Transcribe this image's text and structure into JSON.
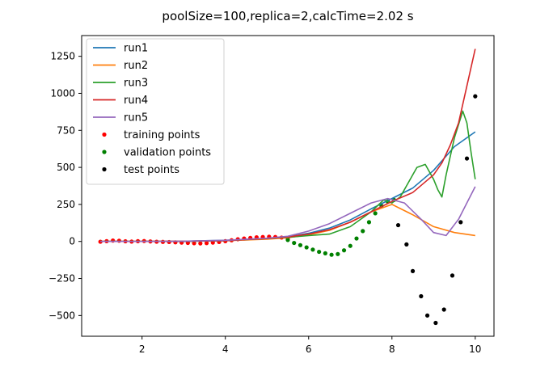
{
  "chart_data": {
    "type": "line",
    "title": "poolSize=100,replica=2,calcTime=2.02 s",
    "xlabel": "",
    "ylabel": "",
    "xlim": [
      0.55,
      10.45
    ],
    "ylim": [
      -640,
      1390
    ],
    "xticks": [
      2,
      4,
      6,
      8,
      10
    ],
    "yticks": [
      -500,
      -250,
      0,
      250,
      500,
      750,
      1000,
      1250
    ],
    "legend_position": "top-left",
    "series": [
      {
        "name": "run1",
        "type": "line",
        "color": "#1f77b4",
        "x": [
          1,
          2,
          3,
          4,
          5,
          5.5,
          6,
          6.5,
          7,
          7.5,
          8,
          8.5,
          9,
          9.5,
          10
        ],
        "y": [
          0,
          0,
          2,
          8,
          20,
          30,
          55,
          90,
          145,
          220,
          290,
          360,
          480,
          640,
          740
        ]
      },
      {
        "name": "run2",
        "type": "line",
        "color": "#ff7f0e",
        "x": [
          1,
          2,
          3,
          4,
          5,
          5.5,
          6,
          6.5,
          7,
          7.5,
          8,
          8.5,
          9,
          9.5,
          10
        ],
        "y": [
          0,
          0,
          2,
          5,
          15,
          25,
          45,
          75,
          130,
          200,
          250,
          180,
          100,
          60,
          40
        ]
      },
      {
        "name": "run3",
        "type": "line",
        "color": "#2ca02c",
        "x": [
          1,
          2,
          3,
          4,
          5,
          5.5,
          6,
          6.5,
          7,
          7.5,
          7.8,
          8,
          8.2,
          8.4,
          8.6,
          8.8,
          9,
          9.1,
          9.2,
          9.3,
          9.5,
          9.7,
          9.8,
          9.9,
          10
        ],
        "y": [
          0,
          0,
          0,
          5,
          20,
          28,
          40,
          50,
          100,
          200,
          280,
          260,
          300,
          400,
          500,
          520,
          420,
          350,
          300,
          450,
          700,
          880,
          800,
          600,
          420
        ]
      },
      {
        "name": "run4",
        "type": "line",
        "color": "#d62728",
        "x": [
          1,
          2,
          3,
          4,
          5,
          5.5,
          6,
          6.5,
          7,
          7.5,
          8,
          8.5,
          9,
          9.2,
          9.4,
          9.6,
          9.8,
          10
        ],
        "y": [
          0,
          0,
          2,
          5,
          20,
          30,
          50,
          80,
          130,
          200,
          270,
          330,
          450,
          530,
          650,
          800,
          1050,
          1300
        ]
      },
      {
        "name": "run5",
        "type": "line",
        "color": "#9467bd",
        "x": [
          1,
          2,
          3,
          4,
          5,
          5.5,
          6,
          6.5,
          7,
          7.5,
          7.9,
          8.3,
          8.7,
          9,
          9.3,
          9.6,
          10
        ],
        "y": [
          0,
          0,
          2,
          8,
          22,
          35,
          70,
          120,
          190,
          260,
          290,
          260,
          150,
          60,
          40,
          150,
          370
        ]
      },
      {
        "name": "training points",
        "type": "scatter",
        "color": "#ff0000",
        "x": [
          1,
          1.15,
          1.3,
          1.45,
          1.6,
          1.75,
          1.9,
          2.05,
          2.2,
          2.35,
          2.5,
          2.65,
          2.8,
          2.95,
          3.1,
          3.25,
          3.4,
          3.55,
          3.7,
          3.85,
          4,
          4.15,
          4.3,
          4.45,
          4.6,
          4.75,
          4.9,
          5.05,
          5.2,
          5.35,
          5.5
        ],
        "y": [
          -2,
          2,
          6,
          5,
          1,
          -1,
          2,
          3,
          0,
          -2,
          -3,
          -4,
          -6,
          -8,
          -10,
          -12,
          -13,
          -11,
          -8,
          -4,
          2,
          8,
          15,
          20,
          24,
          28,
          30,
          32,
          30,
          26,
          20
        ]
      },
      {
        "name": "validation points",
        "type": "scatter",
        "color": "#008000",
        "x": [
          5.5,
          5.65,
          5.8,
          5.95,
          6.1,
          6.25,
          6.4,
          6.55,
          6.7,
          6.85,
          7,
          7.15,
          7.3,
          7.45,
          7.6,
          7.75,
          7.9,
          8.05
        ],
        "y": [
          10,
          -10,
          -25,
          -40,
          -55,
          -70,
          -80,
          -90,
          -85,
          -60,
          -30,
          20,
          70,
          130,
          190,
          240,
          270,
          280
        ]
      },
      {
        "name": "test points",
        "type": "scatter",
        "color": "#000000",
        "x": [
          8.15,
          8.35,
          8.5,
          8.7,
          8.85,
          9.05,
          9.25,
          9.45,
          9.65,
          9.8,
          10
        ],
        "y": [
          110,
          -20,
          -200,
          -370,
          -500,
          -550,
          -460,
          -230,
          130,
          560,
          980
        ]
      }
    ]
  }
}
